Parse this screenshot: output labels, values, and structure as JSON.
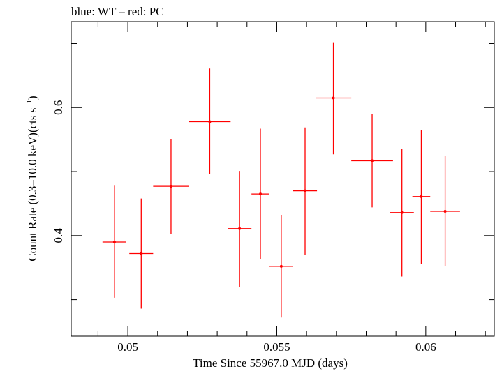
{
  "chart_data": {
    "type": "scatter",
    "title": "blue: WT – red: PC",
    "xlabel": "Time Since 55967.0 MJD (days)",
    "ylabel_main": "Count Rate (0.3–10.0 keV)(cts s",
    "ylabel_sup": "−1",
    "ylabel_close": ")",
    "xlim": [
      0.0481,
      0.0623
    ],
    "ylim": [
      0.2429,
      0.7343
    ],
    "x_ticks_major": [
      0.05,
      0.055,
      0.06
    ],
    "x_tick_labels": [
      "0.05",
      "0.055",
      "0.06"
    ],
    "y_ticks_major": [
      0.4,
      0.6
    ],
    "y_tick_labels": [
      "0.4",
      "0.6"
    ],
    "series": [
      {
        "color": "#ff0000",
        "points": [
          {
            "x": 0.04955,
            "xerr": 0.0004,
            "y": 0.39,
            "yerr_lo": 0.087,
            "yerr_hi": 0.088
          },
          {
            "x": 0.05045,
            "xerr": 0.0004,
            "y": 0.372,
            "yerr_lo": 0.086,
            "yerr_hi": 0.086
          },
          {
            "x": 0.05145,
            "xerr": 0.0006,
            "y": 0.477,
            "yerr_lo": 0.075,
            "yerr_hi": 0.074
          },
          {
            "x": 0.05275,
            "xerr": 0.0007,
            "y": 0.578,
            "yerr_lo": 0.082,
            "yerr_hi": 0.083
          },
          {
            "x": 0.05375,
            "xerr": 0.0004,
            "y": 0.411,
            "yerr_lo": 0.091,
            "yerr_hi": 0.09
          },
          {
            "x": 0.05445,
            "xerr": 0.0003,
            "y": 0.465,
            "yerr_lo": 0.102,
            "yerr_hi": 0.102
          },
          {
            "x": 0.05515,
            "xerr": 0.0004,
            "y": 0.352,
            "yerr_lo": 0.08,
            "yerr_hi": 0.08
          },
          {
            "x": 0.05595,
            "xerr": 0.0004,
            "y": 0.47,
            "yerr_lo": 0.1,
            "yerr_hi": 0.099
          },
          {
            "x": 0.0569,
            "xerr": 0.0006,
            "y": 0.615,
            "yerr_lo": 0.088,
            "yerr_hi": 0.087
          },
          {
            "x": 0.0582,
            "xerr": 0.0007,
            "y": 0.517,
            "yerr_lo": 0.073,
            "yerr_hi": 0.073
          },
          {
            "x": 0.0592,
            "xerr": 0.0004,
            "y": 0.436,
            "yerr_lo": 0.1,
            "yerr_hi": 0.099
          },
          {
            "x": 0.05985,
            "xerr": 0.0003,
            "y": 0.461,
            "yerr_lo": 0.105,
            "yerr_hi": 0.104
          },
          {
            "x": 0.06065,
            "xerr": 0.0005,
            "y": 0.438,
            "yerr_lo": 0.086,
            "yerr_hi": 0.086
          }
        ]
      }
    ],
    "grid": false,
    "legend": "none"
  }
}
